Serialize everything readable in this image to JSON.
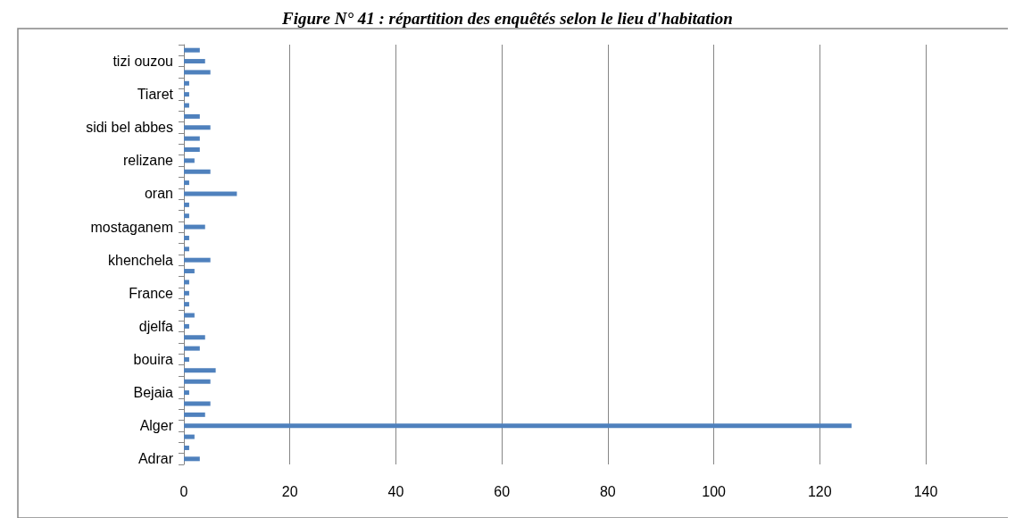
{
  "chart_data": {
    "type": "bar",
    "orientation": "horizontal",
    "title": "Figure N° 41 : répartition des enquêtés selon le lieu d'habitation",
    "categories": [
      null,
      "tizi ouzou",
      null,
      null,
      "Tiaret",
      null,
      null,
      "sidi bel abbes",
      null,
      null,
      "relizane",
      null,
      null,
      "oran",
      null,
      null,
      "mostaganem",
      null,
      null,
      "khenchela",
      null,
      null,
      "France",
      null,
      null,
      "djelfa",
      null,
      null,
      "bouira",
      null,
      null,
      "Bejaia",
      null,
      null,
      "Alger",
      null,
      null,
      "Adrar"
    ],
    "values": [
      3,
      4,
      5,
      1,
      1,
      1,
      3,
      5,
      3,
      3,
      2,
      5,
      1,
      10,
      1,
      1,
      4,
      1,
      1,
      5,
      2,
      1,
      1,
      1,
      2,
      1,
      4,
      3,
      1,
      6,
      5,
      1,
      5,
      4,
      126,
      2,
      1,
      3
    ],
    "color": "#4f81bd",
    "xlim": [
      0,
      140
    ],
    "xticks": [
      0,
      20,
      40,
      60,
      80,
      100,
      120,
      140
    ],
    "grid": "x"
  }
}
